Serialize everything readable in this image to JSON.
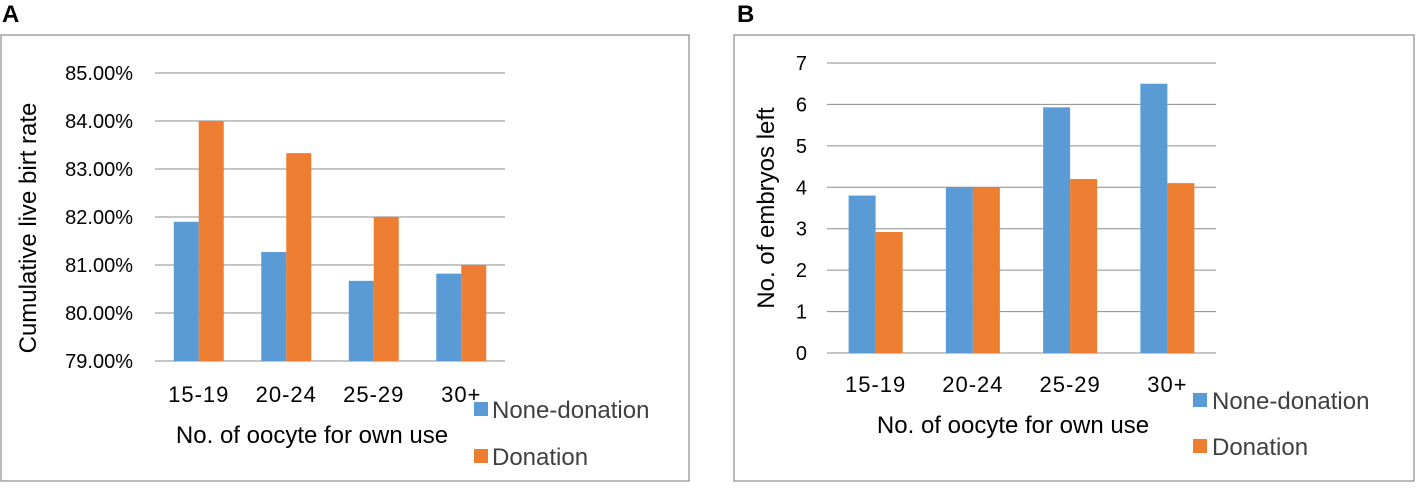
{
  "colors": {
    "none_donation": "#5b9bd5",
    "donation": "#ed7d31"
  },
  "chart_data": [
    {
      "panel_label": "A",
      "type": "bar",
      "categories": [
        "15-19",
        "20-24",
        "25-29",
        "30+"
      ],
      "series": [
        {
          "name": "None-donation",
          "values": [
            81.9,
            81.27,
            80.67,
            80.82
          ]
        },
        {
          "name": "Donation",
          "values": [
            84.0,
            83.33,
            82.0,
            81.0
          ]
        }
      ],
      "ylim": [
        79,
        85
      ],
      "yticks": [
        "79.00%",
        "80.00%",
        "81.00%",
        "82.00%",
        "83.00%",
        "84.00%",
        "85.00%"
      ],
      "ylabel": "Cumulative live birt rate",
      "xlabel": "No. of oocyte for own use",
      "legend_position": "bottom-right",
      "grid": true
    },
    {
      "panel_label": "B",
      "type": "bar",
      "categories": [
        "15-19",
        "20-24",
        "25-29",
        "30+"
      ],
      "series": [
        {
          "name": "None-donation",
          "values": [
            3.8,
            4.0,
            5.93,
            6.5
          ]
        },
        {
          "name": "Donation",
          "values": [
            2.92,
            4.0,
            4.2,
            4.1
          ]
        }
      ],
      "ylim": [
        0,
        7
      ],
      "yticks": [
        "0",
        "1",
        "2",
        "3",
        "4",
        "5",
        "6",
        "7"
      ],
      "ylabel": "No. of embryos left",
      "xlabel": "No. of oocyte for own use",
      "legend_position": "bottom-right",
      "grid": true
    }
  ]
}
